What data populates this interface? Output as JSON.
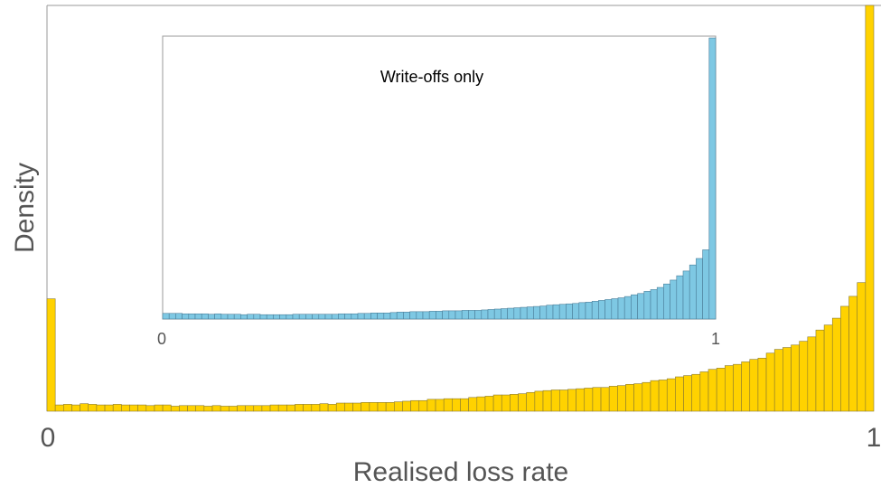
{
  "chart_data": [
    {
      "type": "histogram",
      "title": "",
      "xlabel": "Realised loss rate",
      "ylabel": "Density",
      "xlim": [
        0,
        1
      ],
      "ylim": [
        0,
        6.5
      ],
      "xticks": [
        "0",
        "1"
      ],
      "bar_color": "#FFD200",
      "bar_edge": "#8a7a30",
      "values": [
        1.8,
        0.1,
        0.11,
        0.1,
        0.12,
        0.11,
        0.1,
        0.1,
        0.11,
        0.1,
        0.1,
        0.1,
        0.09,
        0.1,
        0.1,
        0.08,
        0.09,
        0.09,
        0.09,
        0.08,
        0.09,
        0.08,
        0.08,
        0.09,
        0.09,
        0.09,
        0.09,
        0.1,
        0.1,
        0.1,
        0.11,
        0.11,
        0.11,
        0.12,
        0.11,
        0.13,
        0.13,
        0.13,
        0.14,
        0.14,
        0.14,
        0.14,
        0.15,
        0.16,
        0.17,
        0.17,
        0.19,
        0.19,
        0.2,
        0.2,
        0.2,
        0.22,
        0.23,
        0.24,
        0.26,
        0.26,
        0.27,
        0.28,
        0.3,
        0.32,
        0.33,
        0.34,
        0.34,
        0.35,
        0.36,
        0.37,
        0.38,
        0.38,
        0.4,
        0.41,
        0.43,
        0.44,
        0.46,
        0.49,
        0.5,
        0.52,
        0.55,
        0.57,
        0.59,
        0.63,
        0.67,
        0.69,
        0.73,
        0.75,
        0.79,
        0.83,
        0.85,
        0.93,
        0.99,
        1.02,
        1.06,
        1.12,
        1.19,
        1.3,
        1.38,
        1.49,
        1.68,
        1.84,
        2.06,
        6.5
      ]
    },
    {
      "type": "histogram",
      "title": "Write-offs only",
      "xlim": [
        0,
        1
      ],
      "ylim": [
        0,
        6.5
      ],
      "xticks": [
        "0",
        "1"
      ],
      "bar_color": "#7EC8E3",
      "bar_edge": "#4a7e99",
      "values": [
        0.13,
        0.13,
        0.13,
        0.12,
        0.12,
        0.12,
        0.12,
        0.11,
        0.12,
        0.11,
        0.11,
        0.11,
        0.1,
        0.11,
        0.11,
        0.1,
        0.1,
        0.1,
        0.1,
        0.1,
        0.11,
        0.11,
        0.11,
        0.11,
        0.11,
        0.11,
        0.11,
        0.12,
        0.12,
        0.12,
        0.13,
        0.13,
        0.14,
        0.14,
        0.14,
        0.15,
        0.16,
        0.16,
        0.17,
        0.17,
        0.17,
        0.18,
        0.18,
        0.19,
        0.19,
        0.19,
        0.2,
        0.2,
        0.2,
        0.21,
        0.22,
        0.23,
        0.24,
        0.25,
        0.26,
        0.27,
        0.28,
        0.29,
        0.3,
        0.32,
        0.33,
        0.34,
        0.35,
        0.36,
        0.38,
        0.39,
        0.41,
        0.43,
        0.45,
        0.47,
        0.49,
        0.52,
        0.56,
        0.59,
        0.64,
        0.68,
        0.73,
        0.81,
        0.9,
        1.0,
        1.11,
        1.25,
        1.4,
        1.6,
        6.5
      ]
    }
  ]
}
